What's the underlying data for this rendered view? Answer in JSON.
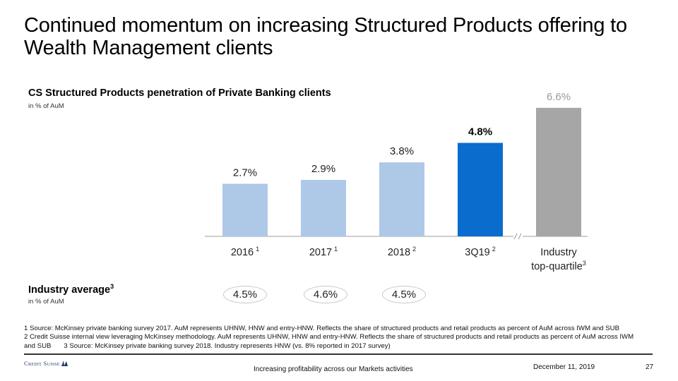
{
  "slide": {
    "title": "Continued momentum on increasing Structured Products offering to Wealth Management clients"
  },
  "chart_data": {
    "type": "bar",
    "title": "CS Structured Products penetration of Private Banking clients",
    "subtitle": "in % of AuM",
    "xlabel": "",
    "ylabel": "",
    "ylim": [
      0,
      7
    ],
    "grid": false,
    "axis_break_before": "Industry top-quartile",
    "categories": [
      {
        "label": "2016",
        "footnote": "1"
      },
      {
        "label": "2017",
        "footnote": "1"
      },
      {
        "label": "2018",
        "footnote": "2"
      },
      {
        "label": "3Q19",
        "footnote": "2"
      },
      {
        "label": "Industry",
        "label2": "top-quartile",
        "footnote": "3"
      }
    ],
    "values": [
      2.7,
      2.9,
      3.8,
      4.8,
      6.6
    ],
    "value_labels": [
      "2.7%",
      "2.9%",
      "3.8%",
      "4.8%",
      "6.6%"
    ],
    "colors": [
      "#aec8e8",
      "#aec8e8",
      "#aec8e8",
      "#0a6ccc",
      "#a6a6a6"
    ],
    "label_colors": [
      "#222222",
      "#222222",
      "#222222",
      "#000000",
      "#999999"
    ],
    "label_bold": [
      false,
      false,
      false,
      true,
      false
    ],
    "axis_color": "#b0b0b0"
  },
  "industry_average": {
    "title": "Industry average",
    "title_footnote": "3",
    "subtitle": "in % of AuM",
    "values": [
      "4.5%",
      "4.6%",
      "4.5%"
    ]
  },
  "footnotes": {
    "line1": "1 Source: McKinsey private banking survey 2017. AuM represents UHNW, HNW and entry-HNW. Reflects the share of structured products and retail products as percent of AuM across IWM and SUB",
    "line2": "2 Credit Suisse internal view leveraging McKinsey methodology. AuM represents UHNW, HNW and entry-HNW. Reflects the share of structured products and retail products as percent of AuM across IWM",
    "line3a": "and SUB",
    "line3b": "3 Source: McKinsey private banking survey 2018. Industry represents HNW (vs. 8% reported in 2017 survey)"
  },
  "footer": {
    "logo_text": "Credit Suisse",
    "center": "Increasing profitability across our Markets activities",
    "date": "December 11, 2019",
    "page": "27"
  }
}
